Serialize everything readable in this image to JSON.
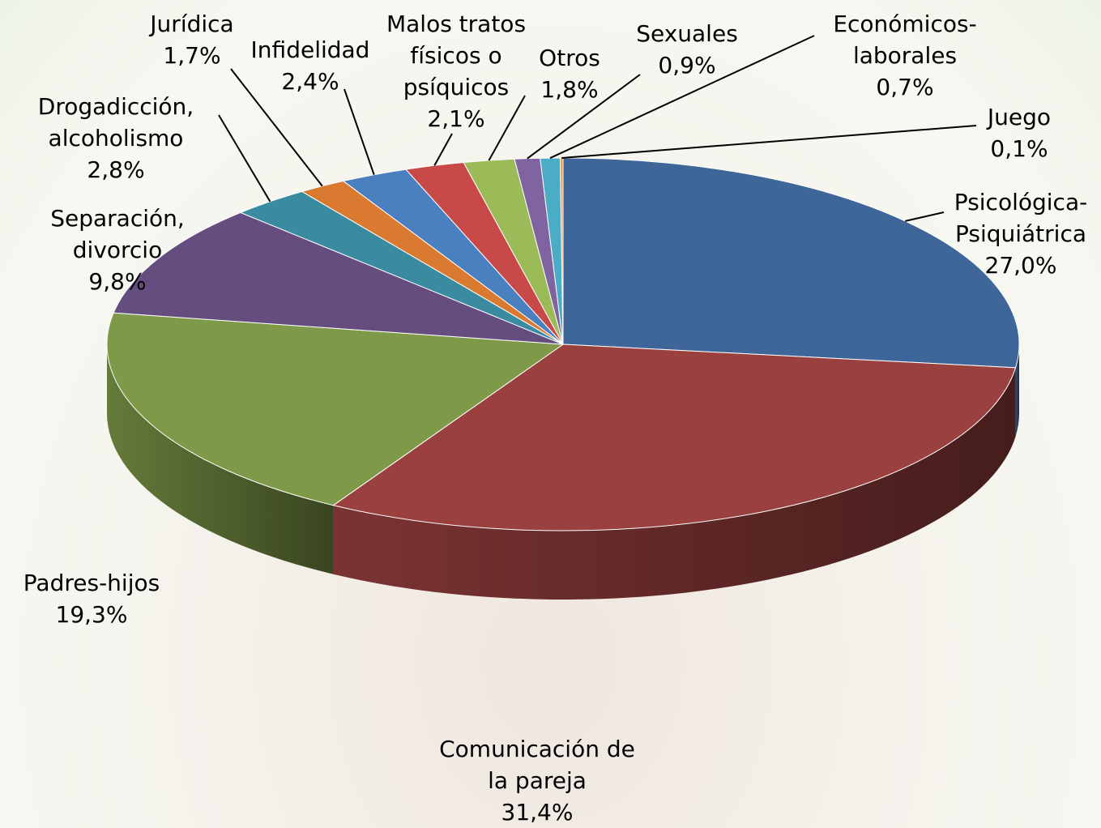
{
  "chart_data": {
    "type": "pie3d",
    "categories": [
      "Psicológica-Psiquiátrica",
      "Comunicación de la pareja",
      "Padres-hijos",
      "Separación, divorcio",
      "Drogadicción, alcoholismo",
      "Jurídica",
      "Infidelidad",
      "Malos tratos físicos o psíquicos",
      "Otros",
      "Sexuales",
      "Económicos-laborales",
      "Juego"
    ],
    "values": [
      27.0,
      31.4,
      19.3,
      9.8,
      2.8,
      1.7,
      2.4,
      2.1,
      1.8,
      0.9,
      0.7,
      0.1
    ],
    "value_labels": [
      "27,0%",
      "31,4%",
      "19,3%",
      "9,8%",
      "2,8%",
      "1,7%",
      "2,4%",
      "2,1%",
      "1,8%",
      "0,9%",
      "0,7%",
      "0,1%"
    ],
    "colors": [
      "#3f6698",
      "#9a403e",
      "#7e9a48",
      "#664d80",
      "#3a8ba0",
      "#d97a30",
      "#4a7fc0",
      "#c84a48",
      "#9bbb59",
      "#8064a2",
      "#4bacc6",
      "#f79646"
    ]
  }
}
